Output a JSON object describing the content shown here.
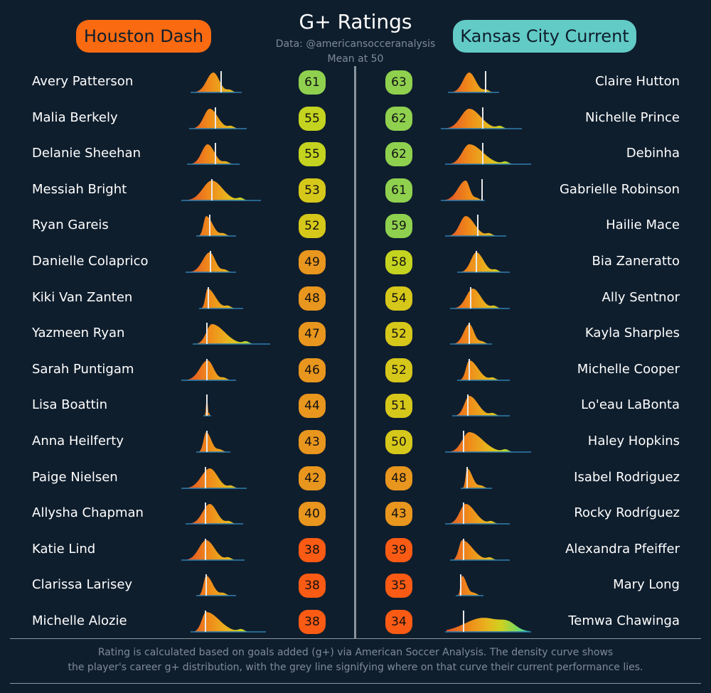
{
  "title": "G+ Ratings",
  "subtitle": "Data: @americansocceranalysis",
  "mean_note": "Mean at 50",
  "teams": {
    "left": {
      "name": "Houston Dash",
      "color": "#fa6a10"
    },
    "right": {
      "name": "Kansas City Current",
      "color": "#62cbc6"
    }
  },
  "footer": {
    "line1": "Rating is calculated based on goals added (g+) via American Soccer Analysis. The density curve shows",
    "line2": "the player's career g+ distribution, with the grey line signifying where on that curve their current performance lies."
  },
  "chart_data": {
    "type": "table",
    "title": "G+ Ratings",
    "mean": 50,
    "curve_units": "career g+ (relative scale)",
    "left": [
      {
        "name": "Avery Patterson",
        "rating": 61,
        "curve": {
          "min": 0.15,
          "mode": 0.45,
          "max": 0.83,
          "current": 0.56
        }
      },
      {
        "name": "Malia Berkely",
        "rating": 55,
        "curve": {
          "min": 0.13,
          "mode": 0.4,
          "max": 0.9,
          "current": 0.48
        }
      },
      {
        "name": "Delanie Sheehan",
        "rating": 55,
        "curve": {
          "min": 0.1,
          "mode": 0.37,
          "max": 0.8,
          "current": 0.48
        }
      },
      {
        "name": "Messiah Bright",
        "rating": 53,
        "curve": {
          "min": 0.02,
          "mode": 0.43,
          "max": 1.1,
          "current": 0.43
        }
      },
      {
        "name": "Ryan Gareis",
        "rating": 52,
        "curve": {
          "min": 0.23,
          "mode": 0.35,
          "max": 0.75,
          "current": 0.4
        }
      },
      {
        "name": "Danielle Colaprico",
        "rating": 49,
        "curve": {
          "min": 0.08,
          "mode": 0.4,
          "max": 0.75,
          "current": 0.41
        }
      },
      {
        "name": "Kiki Van Zanten",
        "rating": 48,
        "curve": {
          "min": 0.27,
          "mode": 0.37,
          "max": 0.85,
          "current": 0.38
        }
      },
      {
        "name": "Yazmeen Ryan",
        "rating": 47,
        "curve": {
          "min": 0.18,
          "mode": 0.43,
          "max": 1.23,
          "current": 0.36
        }
      },
      {
        "name": "Sarah Puntigam",
        "rating": 46,
        "curve": {
          "min": 0.02,
          "mode": 0.37,
          "max": 0.75,
          "current": 0.36
        }
      },
      {
        "name": "Lisa Boattin",
        "rating": 44,
        "curve": {
          "min": 0.33,
          "mode": 0.36,
          "max": 0.4,
          "current": 0.36
        }
      },
      {
        "name": "Anna Heilferty",
        "rating": 43,
        "curve": {
          "min": 0.23,
          "mode": 0.35,
          "max": 0.67,
          "current": 0.36
        }
      },
      {
        "name": "Paige Nielsen",
        "rating": 42,
        "curve": {
          "min": 0.02,
          "mode": 0.4,
          "max": 0.9,
          "current": 0.34
        }
      },
      {
        "name": "Allysha Chapman",
        "rating": 40,
        "curve": {
          "min": 0.08,
          "mode": 0.4,
          "max": 0.85,
          "current": 0.34
        }
      },
      {
        "name": "Katie Lind",
        "rating": 38,
        "curve": {
          "min": 0.02,
          "mode": 0.35,
          "max": 0.87,
          "current": 0.34
        }
      },
      {
        "name": "Clarissa Laris­ey",
        "rating": 38,
        "curve": {
          "min": 0.23,
          "mode": 0.35,
          "max": 0.75,
          "current": 0.35
        }
      },
      {
        "name": "Michelle Alozie",
        "rating": 38,
        "curve": {
          "min": 0.15,
          "mode": 0.35,
          "max": 1.17,
          "current": 0.34
        }
      }
    ],
    "right": [
      {
        "name": "Claire Hutton",
        "rating": 63,
        "curve": {
          "min": 0.12,
          "mode": 0.4,
          "max": 0.8,
          "current": 0.63
        }
      },
      {
        "name": "Nichelle Prince",
        "rating": 62,
        "curve": {
          "min": 0.02,
          "mode": 0.4,
          "max": 1.12,
          "current": 0.59
        }
      },
      {
        "name": "Debinha",
        "rating": 62,
        "curve": {
          "min": 0.08,
          "mode": 0.4,
          "max": 1.25,
          "current": 0.59
        }
      },
      {
        "name": "Gabrielle Robinson",
        "rating": 61,
        "curve": {
          "min": 0.0,
          "mode": 0.35,
          "max": 0.6,
          "current": 0.58
        }
      },
      {
        "name": "Hailie Mace",
        "rating": 59,
        "curve": {
          "min": 0.08,
          "mode": 0.35,
          "max": 0.9,
          "current": 0.52
        }
      },
      {
        "name": "Bia Zaneratto",
        "rating": 58,
        "curve": {
          "min": 0.25,
          "mode": 0.5,
          "max": 0.95,
          "current": 0.5
        }
      },
      {
        "name": "Ally Sentnor",
        "rating": 54,
        "curve": {
          "min": 0.15,
          "mode": 0.45,
          "max": 0.95,
          "current": 0.42
        }
      },
      {
        "name": "Kayla Sharples",
        "rating": 52,
        "curve": {
          "min": 0.15,
          "mode": 0.4,
          "max": 0.7,
          "current": 0.4
        }
      },
      {
        "name": "Michelle Cooper",
        "rating": 52,
        "curve": {
          "min": 0.25,
          "mode": 0.4,
          "max": 0.95,
          "current": 0.4
        }
      },
      {
        "name": "Lo'eau LaBonta",
        "rating": 51,
        "curve": {
          "min": 0.18,
          "mode": 0.4,
          "max": 0.95,
          "current": 0.38
        }
      },
      {
        "name": "Haley Hopkins",
        "rating": 50,
        "curve": {
          "min": 0.08,
          "mode": 0.4,
          "max": 1.25,
          "current": 0.32
        }
      },
      {
        "name": "Isabel Rodriguez",
        "rating": 48,
        "curve": {
          "min": 0.3,
          "mode": 0.37,
          "max": 0.7,
          "current": 0.37
        }
      },
      {
        "name": "Rocky Rodríguez",
        "rating": 43,
        "curve": {
          "min": 0.08,
          "mode": 0.35,
          "max": 0.95,
          "current": 0.32
        }
      },
      {
        "name": "Alexandra Pfeiffer",
        "rating": 39,
        "curve": {
          "min": 0.15,
          "mode": 0.3,
          "max": 0.95,
          "current": 0.32
        }
      },
      {
        "name": "Mary Long",
        "rating": 35,
        "curve": {
          "min": 0.23,
          "mode": 0.3,
          "max": 0.58,
          "current": 0.28
        }
      },
      {
        "name": "Temwa Chawinga",
        "rating": 34,
        "curve": {
          "min": 0.08,
          "mode": 0.6,
          "max": 1.25,
          "current": 0.32,
          "broad": true
        }
      }
    ]
  }
}
